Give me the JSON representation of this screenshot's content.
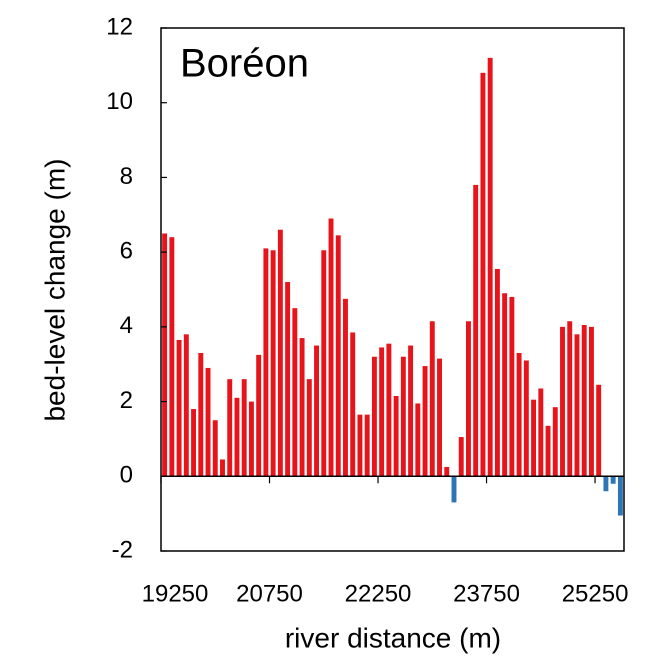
{
  "chart_data": {
    "type": "bar",
    "annotation": "Boréon",
    "x_label": "river distance (m)",
    "y_label": "bed-level change (m)",
    "x": [
      19300,
      19400,
      19500,
      19600,
      19700,
      19800,
      19900,
      20000,
      20100,
      20200,
      20300,
      20400,
      20500,
      20600,
      20700,
      20800,
      20900,
      21000,
      21100,
      21200,
      21300,
      21400,
      21500,
      21600,
      21700,
      21800,
      21900,
      22000,
      22100,
      22200,
      22300,
      22400,
      22500,
      22600,
      22700,
      22800,
      22900,
      23000,
      23100,
      23200,
      23300,
      23400,
      23500,
      23600,
      23700,
      23800,
      23900,
      24000,
      24100,
      24200,
      24300,
      24400,
      24500,
      24600,
      24700,
      24800,
      24900,
      25000,
      25100,
      25200,
      25300,
      25400,
      25500,
      25600
    ],
    "values": [
      6.5,
      6.4,
      3.65,
      3.8,
      1.8,
      3.3,
      2.9,
      1.5,
      0.45,
      2.6,
      2.1,
      2.6,
      2.0,
      3.25,
      6.1,
      6.05,
      6.6,
      5.2,
      4.5,
      3.7,
      2.6,
      3.5,
      6.05,
      6.9,
      6.45,
      4.75,
      3.85,
      1.65,
      1.65,
      3.2,
      3.45,
      3.55,
      2.15,
      3.2,
      3.5,
      1.95,
      2.95,
      4.15,
      3.15,
      0.25,
      -0.7,
      1.05,
      4.15,
      7.8,
      10.8,
      11.2,
      5.55,
      4.9,
      4.8,
      3.3,
      3.1,
      2.05,
      2.35,
      1.35,
      1.85,
      4.0,
      4.15,
      3.8,
      4.05,
      4.0,
      2.45,
      -0.4,
      -0.2,
      -1.05
    ],
    "color": "#e8141c",
    "negative_color": "#2e75b6",
    "xlim": [
      19250,
      25650
    ],
    "xticks": [
      19250,
      20750,
      22250,
      23750,
      25250
    ],
    "ylim": [
      -2,
      12
    ],
    "yticks": [
      -2,
      0,
      2,
      4,
      6,
      8,
      10,
      12
    ]
  }
}
